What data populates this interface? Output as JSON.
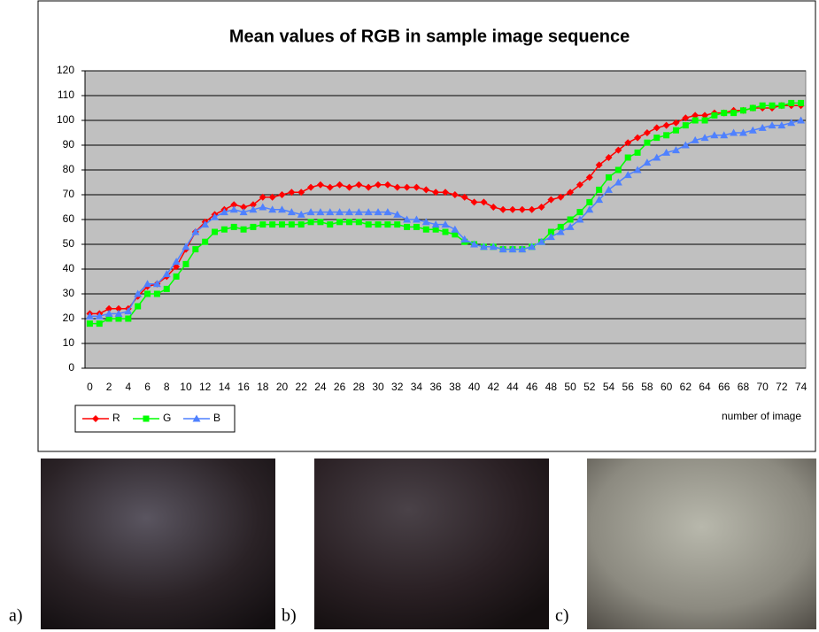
{
  "chart_data": {
    "type": "line",
    "title": "Mean values of RGB in sample image sequence",
    "x_label": "number of image",
    "categories": [
      0,
      null,
      2,
      null,
      4,
      null,
      6,
      null,
      8,
      null,
      10,
      null,
      12,
      null,
      14,
      null,
      16,
      null,
      18,
      null,
      20,
      null,
      22,
      null,
      24,
      null,
      26,
      null,
      28,
      null,
      30,
      null,
      32,
      null,
      34,
      null,
      36,
      null,
      38,
      null,
      40,
      null,
      42,
      null,
      44,
      null,
      46,
      null,
      48,
      null,
      50,
      null,
      52,
      null,
      54,
      null,
      56,
      null,
      58,
      null,
      60,
      null,
      62,
      null,
      64,
      null,
      66,
      null,
      68,
      null,
      70,
      null,
      72,
      null,
      74
    ],
    "series": [
      {
        "name": "R",
        "color": "#ff0000",
        "marker": "diamond",
        "values": [
          22,
          22,
          24,
          24,
          24,
          29,
          33,
          34,
          37,
          41,
          48,
          55,
          59,
          62,
          64,
          66,
          65,
          66,
          69,
          69,
          70,
          71,
          71,
          73,
          74,
          73,
          74,
          73,
          74,
          73,
          74,
          74,
          73,
          73,
          73,
          72,
          71,
          71,
          70,
          69,
          67,
          67,
          65,
          64,
          64,
          64,
          64,
          65,
          68,
          69,
          71,
          74,
          77,
          82,
          85,
          88,
          91,
          93,
          95,
          97,
          98,
          99,
          101,
          102,
          102,
          103,
          103,
          104,
          104,
          105,
          105,
          105,
          106,
          106,
          106
        ]
      },
      {
        "name": "G",
        "color": "#00ff00",
        "marker": "square",
        "values": [
          18,
          18,
          20,
          20,
          20,
          25,
          30,
          30,
          32,
          37,
          42,
          48,
          51,
          55,
          56,
          57,
          56,
          57,
          58,
          58,
          58,
          58,
          58,
          59,
          59,
          58,
          59,
          59,
          59,
          58,
          58,
          58,
          58,
          57,
          57,
          56,
          56,
          55,
          54,
          51,
          50,
          49,
          49,
          48,
          48,
          48,
          49,
          51,
          55,
          57,
          60,
          63,
          67,
          72,
          77,
          80,
          85,
          87,
          91,
          93,
          94,
          96,
          98,
          100,
          100,
          102,
          103,
          103,
          104,
          105,
          106,
          106,
          106,
          107,
          107
        ]
      },
      {
        "name": "B",
        "color": "#4f81ff",
        "marker": "triangle",
        "values": [
          21,
          21,
          22,
          22,
          23,
          30,
          34,
          34,
          38,
          43,
          49,
          55,
          58,
          61,
          63,
          64,
          63,
          64,
          65,
          64,
          64,
          63,
          62,
          63,
          63,
          63,
          63,
          63,
          63,
          63,
          63,
          63,
          62,
          60,
          60,
          59,
          58,
          58,
          56,
          52,
          50,
          49,
          49,
          48,
          48,
          48,
          49,
          51,
          53,
          55,
          57,
          60,
          64,
          68,
          72,
          75,
          78,
          80,
          83,
          85,
          87,
          88,
          90,
          92,
          93,
          94,
          94,
          95,
          95,
          96,
          97,
          98,
          98,
          99,
          100
        ]
      }
    ],
    "ylim": [
      0,
      120
    ],
    "yticks": [
      0,
      10,
      20,
      30,
      40,
      50,
      60,
      70,
      80,
      90,
      100,
      110,
      120
    ],
    "grid": true,
    "legend": "bottom-left",
    "plot_background": "#c0c0c0"
  },
  "panels": [
    "a)",
    "b)",
    "c)"
  ]
}
